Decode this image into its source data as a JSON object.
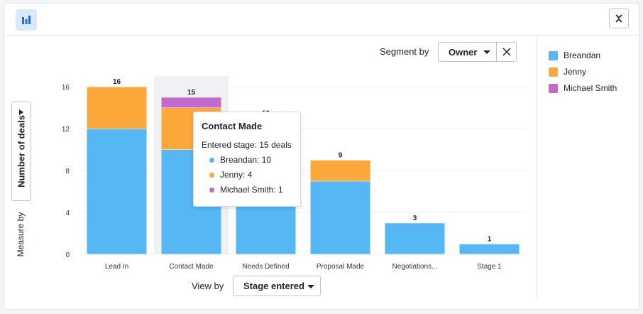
{
  "toolbar": {
    "chart_icon": "bar-chart-icon",
    "collapse_icon": "collapse-icon"
  },
  "segment_by": {
    "label": "Segment by",
    "value": "Owner",
    "clear_icon": "close-icon"
  },
  "measure_by": {
    "label": "Measure by",
    "value": "Number of deals"
  },
  "view_by": {
    "label": "View by",
    "value": "Stage entered"
  },
  "legend": [
    {
      "label": "Breandan",
      "color": "#56b7f5"
    },
    {
      "label": "Jenny",
      "color": "#fba838"
    },
    {
      "label": "Michael Smith",
      "color": "#c369cc"
    }
  ],
  "tooltip": {
    "title": "Contact Made",
    "summary": "Entered stage: 15 deals",
    "rows": [
      "Breandan: 10",
      "Jenny: 4",
      "Michael Smith: 1"
    ]
  },
  "chart_data": {
    "type": "bar",
    "stacked": true,
    "categories": [
      "Lead In",
      "Contact Made",
      "Needs Defined",
      "Proposal Made",
      "Negotiations...",
      "Stage 1"
    ],
    "series": [
      {
        "name": "Breandan",
        "color": "#56b7f5",
        "values": [
          12,
          10,
          13,
          7,
          3,
          1
        ]
      },
      {
        "name": "Jenny",
        "color": "#fba838",
        "values": [
          4,
          4,
          0,
          2,
          0,
          0
        ]
      },
      {
        "name": "Michael Smith",
        "color": "#c369cc",
        "values": [
          0,
          1,
          0,
          0,
          0,
          0
        ]
      }
    ],
    "totals": [
      16,
      15,
      13,
      9,
      3,
      1
    ],
    "yticks": [
      0,
      4,
      8,
      12,
      16
    ],
    "ylim": [
      0,
      16
    ],
    "highlighted_category": "Contact Made",
    "grid": true
  }
}
